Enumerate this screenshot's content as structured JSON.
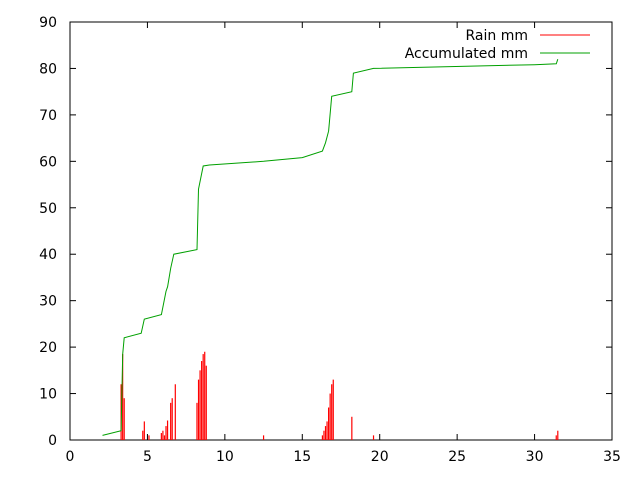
{
  "chart_data": {
    "type": "bar+line",
    "title": "",
    "xlabel": "",
    "ylabel": "",
    "xlim": [
      0,
      35
    ],
    "ylim": [
      0,
      90
    ],
    "x_ticks": [
      0,
      5,
      10,
      15,
      20,
      25,
      30,
      35
    ],
    "y_ticks": [
      0,
      10,
      20,
      30,
      40,
      50,
      60,
      70,
      80,
      90
    ],
    "grid": false,
    "legend_position": "top-right",
    "series": [
      {
        "name": "Rain mm",
        "kind": "impulses",
        "color": "#ff0000",
        "points": [
          [
            3.3,
            12
          ],
          [
            3.4,
            18.5
          ],
          [
            3.5,
            9
          ],
          [
            4.7,
            2
          ],
          [
            4.8,
            4
          ],
          [
            5.1,
            1
          ],
          [
            5.9,
            1.5
          ],
          [
            6.0,
            2
          ],
          [
            6.1,
            1
          ],
          [
            6.2,
            3
          ],
          [
            6.3,
            4.2
          ],
          [
            6.5,
            8
          ],
          [
            6.6,
            9
          ],
          [
            6.8,
            12
          ],
          [
            8.2,
            8
          ],
          [
            8.3,
            13
          ],
          [
            8.4,
            15
          ],
          [
            8.5,
            17
          ],
          [
            8.6,
            18.5
          ],
          [
            8.7,
            19
          ],
          [
            8.8,
            16
          ],
          [
            12.5,
            1
          ],
          [
            16.3,
            1
          ],
          [
            16.4,
            2
          ],
          [
            16.5,
            3
          ],
          [
            16.6,
            4
          ],
          [
            16.7,
            7
          ],
          [
            16.8,
            10
          ],
          [
            16.9,
            12
          ],
          [
            17.0,
            13
          ],
          [
            18.2,
            5
          ],
          [
            19.6,
            1
          ],
          [
            31.4,
            1
          ],
          [
            31.5,
            2
          ]
        ]
      },
      {
        "name": "Accumulated mm",
        "kind": "line",
        "color": "#00a000",
        "points": [
          [
            2.1,
            1
          ],
          [
            3.3,
            2
          ],
          [
            3.4,
            18.5
          ],
          [
            3.5,
            22
          ],
          [
            4.6,
            23
          ],
          [
            4.8,
            26
          ],
          [
            5.9,
            27
          ],
          [
            6.2,
            32
          ],
          [
            6.3,
            33
          ],
          [
            6.5,
            37
          ],
          [
            6.7,
            40
          ],
          [
            8.2,
            41
          ],
          [
            8.3,
            54
          ],
          [
            8.6,
            59
          ],
          [
            9.0,
            59.2
          ],
          [
            12.5,
            60
          ],
          [
            15.0,
            60.8
          ],
          [
            16.3,
            62.2
          ],
          [
            16.5,
            64
          ],
          [
            16.7,
            66.5
          ],
          [
            16.9,
            74
          ],
          [
            18.2,
            75
          ],
          [
            18.3,
            79
          ],
          [
            19.6,
            80
          ],
          [
            30.0,
            80.8
          ],
          [
            31.4,
            81
          ],
          [
            31.5,
            82
          ]
        ]
      }
    ]
  }
}
